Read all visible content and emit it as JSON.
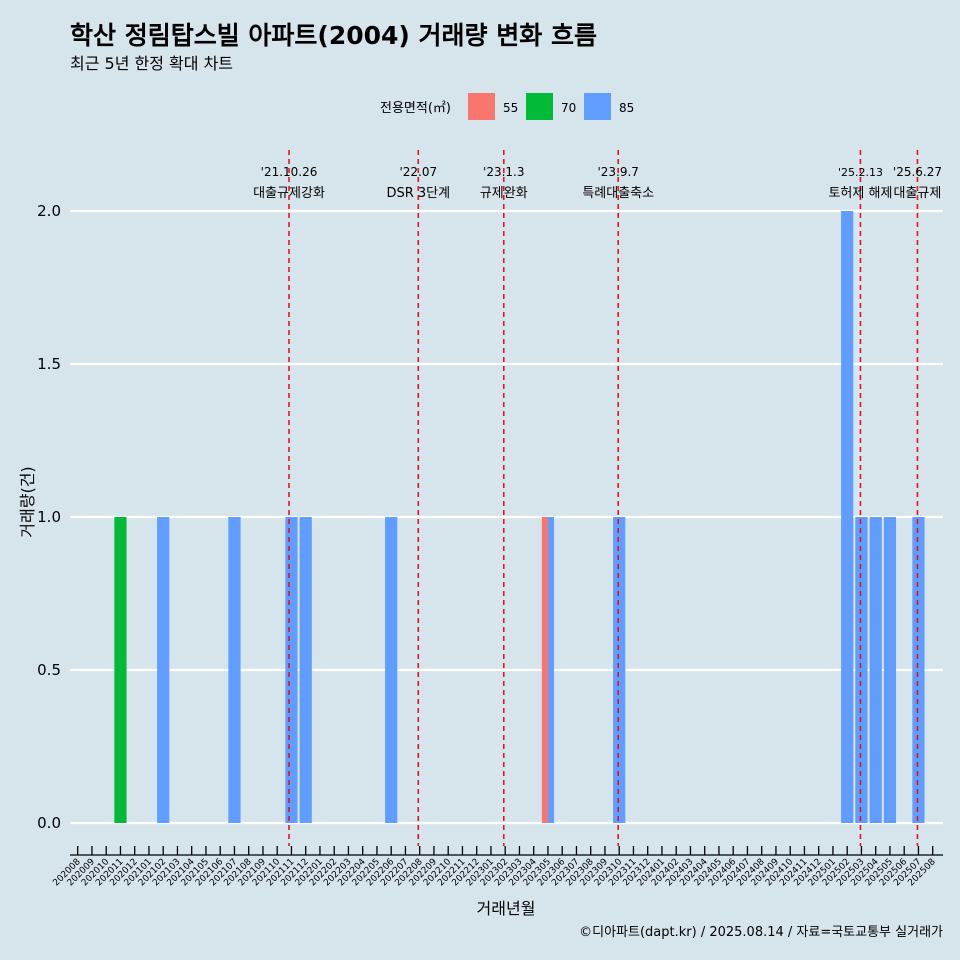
{
  "chart_data": {
    "type": "bar",
    "title": "학산 정림탑스빌 아파트(2004) 거래량 변화 흐름",
    "subtitle": "최근 5년 한정 확대 차트",
    "xlabel": "거래년월",
    "ylabel": "거래량(건)",
    "ylim": [
      -0.07,
      2.2
    ],
    "yticks": [
      "0.0",
      "0.5",
      "1.0",
      "1.5",
      "2.0"
    ],
    "grid": true,
    "legend": {
      "title": "전용면적(㎡)",
      "position": "top",
      "items": [
        {
          "label": "55",
          "color": "#f8766d"
        },
        {
          "label": "70",
          "color": "#00ba38"
        },
        {
          "label": "85",
          "color": "#619cff"
        }
      ]
    },
    "categories": [
      "202008",
      "202009",
      "202010",
      "202011",
      "202012",
      "202101",
      "202102",
      "202103",
      "202104",
      "202105",
      "202106",
      "202107",
      "202108",
      "202109",
      "202110",
      "202111",
      "202112",
      "202201",
      "202202",
      "202203",
      "202204",
      "202205",
      "202206",
      "202207",
      "202208",
      "202209",
      "202210",
      "202211",
      "202212",
      "202301",
      "202302",
      "202303",
      "202304",
      "202305",
      "202306",
      "202307",
      "202308",
      "202309",
      "202310",
      "202311",
      "202312",
      "202401",
      "202402",
      "202403",
      "202404",
      "202405",
      "202406",
      "202407",
      "202408",
      "202409",
      "202410",
      "202411",
      "202412",
      "202501",
      "202502",
      "202503",
      "202504",
      "202505",
      "202506",
      "202507",
      "202508"
    ],
    "series": [
      {
        "name": "55",
        "color": "#f8766d",
        "values": {
          "202305": 1
        }
      },
      {
        "name": "70",
        "color": "#00ba38",
        "values": {
          "202011": 1
        }
      },
      {
        "name": "85",
        "color": "#619cff",
        "values": {
          "202102": 1,
          "202107": 1,
          "202111": 1,
          "202112": 1,
          "202206": 1,
          "202305": 1,
          "202310": 1,
          "202502": 2,
          "202503": 1,
          "202504": 1,
          "202505": 1,
          "202507": 1
        }
      }
    ],
    "annotations": [
      {
        "date": "'21.10.26",
        "label": "대출규제강화",
        "month_index": 14.83
      },
      {
        "date": "'22.07",
        "label": "DSR 3단계",
        "month_index": 23.9
      },
      {
        "date": "'23.1.3",
        "label": "규제완화",
        "month_index": 29.9
      },
      {
        "date": "'23.9.7",
        "label": "특례대출축소",
        "month_index": 37.93
      },
      {
        "date": "'25.2.13",
        "label": "토허제 해제",
        "month_index": 54.93
      },
      {
        "date": "'25.6.27",
        "label": "대출규제",
        "month_index": 58.93
      }
    ],
    "caption": "©디아파트(dapt.kr) / 2025.08.14 / 자료=국토교통부 실거래가"
  }
}
